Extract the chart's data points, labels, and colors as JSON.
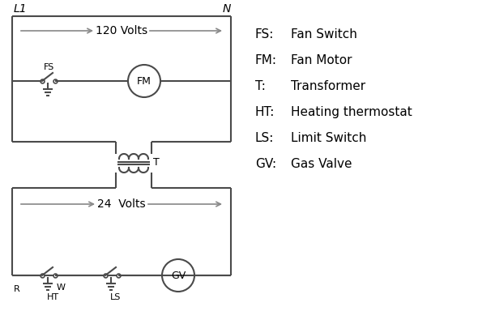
{
  "background": "#ffffff",
  "line_color": "#4a4a4a",
  "text_color": "#000000",
  "line_width": 1.5,
  "legend": {
    "items": [
      [
        "FS:",
        "Fan Switch"
      ],
      [
        "FM:",
        "Fan Motor"
      ],
      [
        "T:",
        "Transformer"
      ],
      [
        "HT:",
        "Heating thermostat"
      ],
      [
        "LS:",
        "Limit Switch"
      ],
      [
        "GV:",
        "Gas Valve"
      ]
    ],
    "fontsize": 11
  },
  "L1_label": "L1",
  "N_label": "N",
  "volts120_label": "120 Volts",
  "volts24_label": "24  Volts",
  "T_label": "T",
  "R_label": "R",
  "W_label": "W",
  "HT_label": "HT",
  "LS_label": "LS",
  "FS_label": "FS",
  "FM_label": "FM",
  "GV_label": "GV"
}
